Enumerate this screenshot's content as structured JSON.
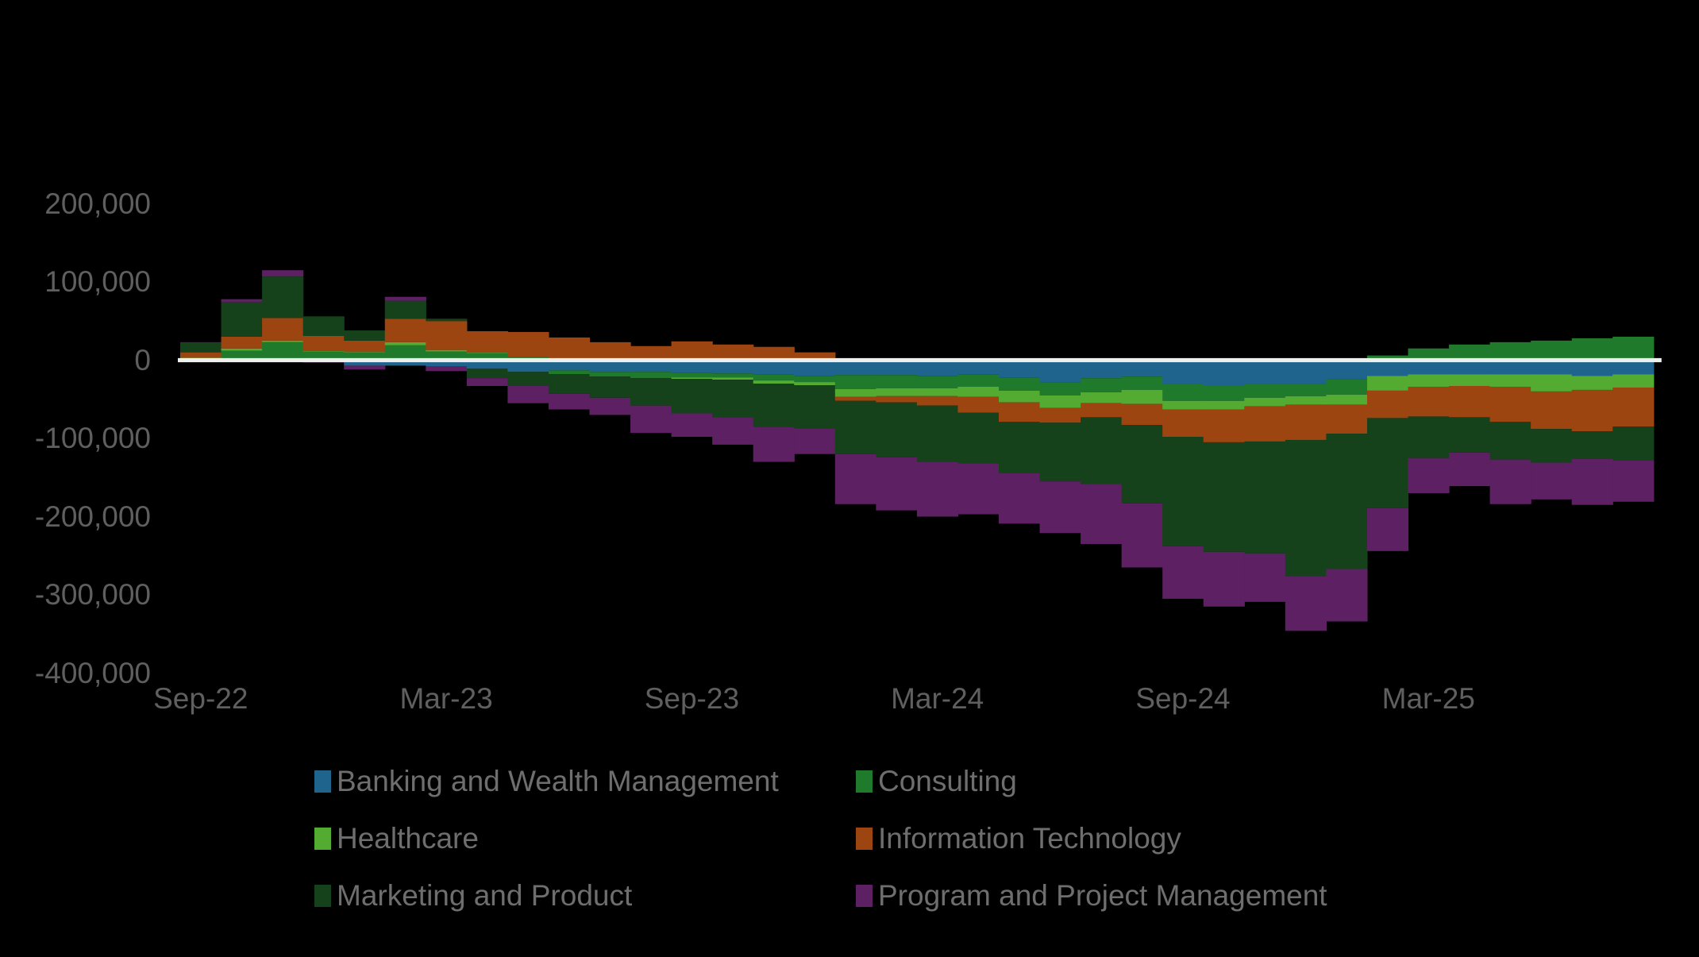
{
  "chart_data": {
    "type": "bar",
    "stacked": true,
    "title": "",
    "xlabel": "",
    "ylabel": "",
    "grid": false,
    "legend_position": "bottom",
    "background_color": "#000000",
    "zero_line_color": "#eef0ee",
    "axis_text_color": "#5f5f5f",
    "legend_text_color": "#6e6e6e",
    "ylim": [
      -400000,
      200000
    ],
    "x": [
      "Sep-22",
      "Oct-22",
      "Nov-22",
      "Dec-22",
      "Jan-23",
      "Feb-23",
      "Mar-23",
      "Apr-23",
      "May-23",
      "Jun-23",
      "Jul-23",
      "Aug-23",
      "Sep-23",
      "Oct-23",
      "Nov-23",
      "Dec-23",
      "Jan-24",
      "Feb-24",
      "Mar-24",
      "Apr-24",
      "May-24",
      "Jun-24",
      "Jul-24",
      "Aug-24",
      "Sep-24",
      "Oct-24",
      "Nov-24",
      "Dec-24",
      "Jan-25",
      "Feb-25",
      "Mar-25",
      "Apr-25",
      "May-25",
      "Jun-25",
      "Jul-25",
      "Aug-25"
    ],
    "series": [
      {
        "name": "Banking and Wealth Management",
        "color": "#1e648c",
        "values": [
          0,
          0,
          0,
          0,
          -7000,
          -7000,
          -8000,
          -11000,
          -15000,
          -13000,
          -15000,
          -15000,
          -16000,
          -17000,
          -18000,
          -20000,
          -19000,
          -19000,
          -20000,
          -18000,
          -22000,
          -28000,
          -23000,
          -21000,
          -30000,
          -32000,
          -30000,
          -30000,
          -24000,
          -20000,
          -18000,
          -18000,
          -18000,
          -18000,
          -20000,
          -18000
        ]
      },
      {
        "name": "Consulting",
        "color": "#1f7a2c",
        "values": [
          2000,
          12000,
          23000,
          11000,
          10000,
          19000,
          11000,
          9000,
          4000,
          -5000,
          -6000,
          -8000,
          -6000,
          -5000,
          -8000,
          -8000,
          -18000,
          -17000,
          -16000,
          -16000,
          -17000,
          -17000,
          -18000,
          -17000,
          -22000,
          -20000,
          -18000,
          -16000,
          -20000,
          6000,
          15000,
          20000,
          23000,
          25000,
          28000,
          30000
        ]
      },
      {
        "name": "Healthcare",
        "color": "#54ab32",
        "values": [
          1000,
          3000,
          2000,
          1000,
          1000,
          4000,
          2000,
          1000,
          0,
          0,
          0,
          0,
          -2000,
          -3000,
          -4000,
          -4000,
          -10000,
          -10000,
          -10000,
          -13000,
          -15000,
          -16000,
          -14000,
          -18000,
          -11000,
          -11000,
          -11000,
          -11000,
          -13000,
          -19000,
          -16000,
          -15000,
          -16000,
          -22000,
          -18000,
          -17000
        ]
      },
      {
        "name": "Information Technology",
        "color": "#9d4511",
        "values": [
          7000,
          15000,
          29000,
          19000,
          14000,
          30000,
          37000,
          27000,
          32000,
          29000,
          23000,
          18000,
          24000,
          20000,
          17000,
          10000,
          -5000,
          -8000,
          -12000,
          -20000,
          -25000,
          -19000,
          -18000,
          -27000,
          -35000,
          -42000,
          -45000,
          -45000,
          -37000,
          -35000,
          -38000,
          -40000,
          -45000,
          -48000,
          -53000,
          -50000
        ]
      },
      {
        "name": "Marketing and Product",
        "color": "#15421b",
        "values": [
          12000,
          44000,
          53000,
          25000,
          13000,
          23000,
          3000,
          -12000,
          -18000,
          -25000,
          -27000,
          -35000,
          -44000,
          -48000,
          -55000,
          -55000,
          -68000,
          -70000,
          -72000,
          -65000,
          -65000,
          -75000,
          -85000,
          -100000,
          -140000,
          -140000,
          -143000,
          -174000,
          -173000,
          -115000,
          -53000,
          -45000,
          -48000,
          -43000,
          -35000,
          -43000
        ]
      },
      {
        "name": "Program and Project Management",
        "color": "#5d2063",
        "values": [
          1000,
          4000,
          8000,
          -3000,
          -5000,
          5000,
          -6000,
          -10000,
          -22000,
          -20000,
          -22000,
          -35000,
          -30000,
          -35000,
          -45000,
          -33000,
          -64000,
          -68000,
          -70000,
          -65000,
          -65000,
          -66000,
          -77000,
          -82000,
          -67000,
          -70000,
          -62000,
          -70000,
          -67000,
          -55000,
          -45000,
          -43000,
          -57000,
          -47000,
          -59000,
          -53000
        ]
      }
    ],
    "y_ticks": [
      {
        "value": 200000,
        "label": "200,000"
      },
      {
        "value": 100000,
        "label": "100,000"
      },
      {
        "value": 0,
        "label": "0"
      },
      {
        "value": -100000,
        "label": "-100,000"
      },
      {
        "value": -200000,
        "label": "-200,000"
      },
      {
        "value": -300000,
        "label": "-300,000"
      },
      {
        "value": -400000,
        "label": "-400,000"
      }
    ],
    "x_ticks": [
      {
        "index": 0,
        "label": "Sep-22"
      },
      {
        "index": 6,
        "label": "Mar-23"
      },
      {
        "index": 12,
        "label": "Sep-23"
      },
      {
        "index": 18,
        "label": "Mar-24"
      },
      {
        "index": 24,
        "label": "Sep-24"
      },
      {
        "index": 30,
        "label": "Mar-25"
      }
    ]
  }
}
